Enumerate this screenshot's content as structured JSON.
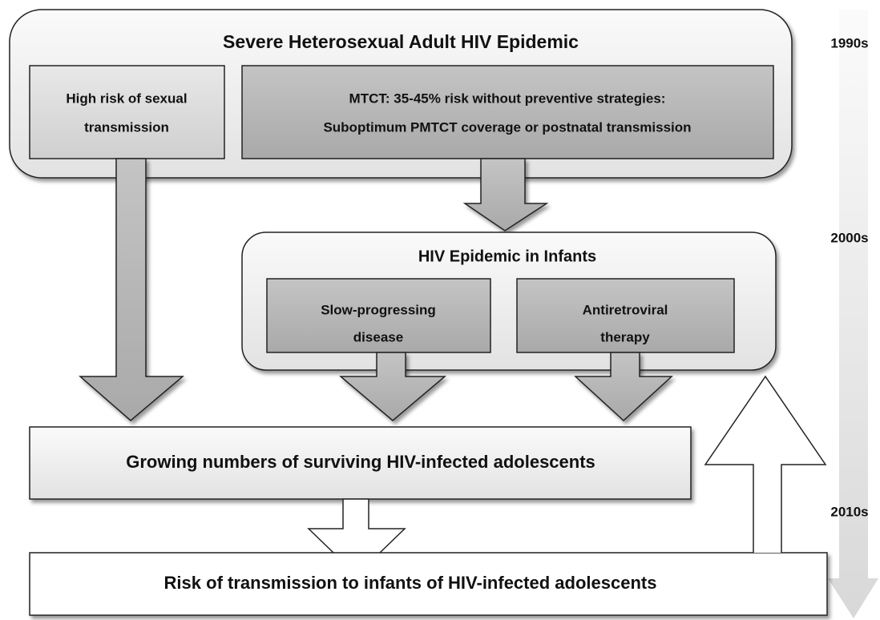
{
  "title": "Severe Heterosexual Adult HIV Epidemic",
  "boxes": {
    "sexual": {
      "lines": [
        "High risk of sexual",
        "transmission"
      ]
    },
    "mtct": {
      "lines": [
        "MTCT: 35-45% risk without preventive strategies:",
        "Suboptimum PMTCT coverage or postnatal transmission"
      ]
    },
    "infants": {
      "title": "HIV Epidemic in Infants"
    },
    "slow": {
      "lines": [
        "Slow-progressing",
        "disease"
      ]
    },
    "art": {
      "lines": [
        "Antiretroviral",
        "therapy"
      ]
    },
    "growing": {
      "label": "Growing numbers of surviving HIV-infected adolescents"
    },
    "risk": {
      "label": "Risk of transmission to infants of HIV-infected adolescents"
    }
  },
  "timeline": [
    "1990s",
    "2000s",
    "2010s"
  ]
}
